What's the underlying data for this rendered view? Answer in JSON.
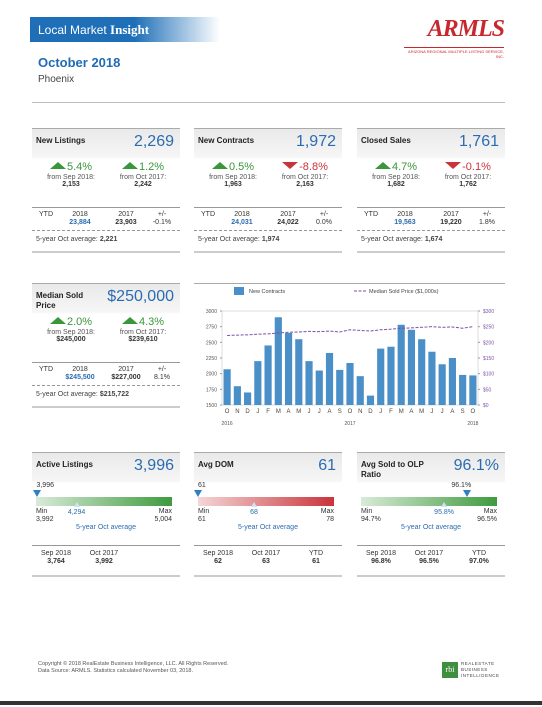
{
  "header": {
    "title_prefix": "Local Market",
    "title_bold": "Insight",
    "logo": "ARMLS",
    "logo_sub": "ARIZONA REGIONAL MULTIPLE LISTING SERVICE, INC.",
    "month": "October 2018",
    "area": "Phoenix"
  },
  "cards": [
    {
      "title": "New Listings",
      "value": "2,269",
      "changes": [
        {
          "pct": "5.4%",
          "label": "from Sep 2018:",
          "value": "2,153"
        },
        {
          "pct": "1.2%",
          "label": "from Oct 2017:",
          "value": "2,242"
        }
      ],
      "ytd": {
        "label": "YTD",
        "headers": [
          "2018",
          "2017",
          "+/-"
        ],
        "values": [
          "23,884",
          "23,903",
          "-0.1%"
        ]
      },
      "avg": {
        "label": "5-year Oct average:",
        "value": "2,221"
      }
    },
    {
      "title": "New Contracts",
      "value": "1,972",
      "changes": [
        {
          "pct": "0.5%",
          "label": "from Sep 2018:",
          "value": "1,963"
        },
        {
          "pct": "-8.8%",
          "label": "from Oct 2017:",
          "value": "2,163"
        }
      ],
      "ytd": {
        "label": "YTD",
        "headers": [
          "2018",
          "2017",
          "+/-"
        ],
        "values": [
          "24,031",
          "24,022",
          "0.0%"
        ]
      },
      "avg": {
        "label": "5-year Oct average:",
        "value": "1,974"
      }
    },
    {
      "title": "Closed Sales",
      "value": "1,761",
      "changes": [
        {
          "pct": "4.7%",
          "label": "from Sep 2018:",
          "value": "1,682"
        },
        {
          "pct": "-0.1%",
          "label": "from Oct 2017:",
          "value": "1,762"
        }
      ],
      "ytd": {
        "label": "YTD",
        "headers": [
          "2018",
          "2017",
          "+/-"
        ],
        "values": [
          "19,563",
          "19,220",
          "1.8%"
        ]
      },
      "avg": {
        "label": "5-year Oct average:",
        "value": "1,674"
      }
    },
    {
      "title": "Median Sold Price",
      "value": "$250,000",
      "changes": [
        {
          "pct": "2.0%",
          "label": "from Sep 2018:",
          "value": "$245,000"
        },
        {
          "pct": "4.3%",
          "label": "from Oct 2017:",
          "value": "$239,610"
        }
      ],
      "ytd": {
        "label": "YTD",
        "headers": [
          "2018",
          "2017",
          "+/-"
        ],
        "values": [
          "$245,500",
          "$227,000",
          "8.1%"
        ]
      },
      "avg": {
        "label": "5-year Oct average:",
        "value": "$215,722"
      }
    }
  ],
  "gauges": [
    {
      "title": "Active Listings",
      "value": "3,996",
      "color": "#3f9a3f",
      "gauge": {
        "current": "3,996",
        "min_label": "Min",
        "min": "3,992",
        "max_label": "Max",
        "max": "5,004",
        "avg": "4,294",
        "avg_label": "5-year Oct average"
      },
      "stats": [
        {
          "label": "Sep 2018",
          "value": "3,764"
        },
        {
          "label": "Oct 2017",
          "value": "3,992"
        }
      ]
    },
    {
      "title": "Avg DOM",
      "value": "61",
      "color": "#c9343a",
      "gauge": {
        "current": "61",
        "min_label": "Min",
        "min": "61",
        "max_label": "Max",
        "max": "78",
        "avg": "68",
        "avg_label": "5-year Oct average"
      },
      "stats": [
        {
          "label": "Sep 2018",
          "value": "62"
        },
        {
          "label": "Oct 2017",
          "value": "63"
        },
        {
          "label": "YTD",
          "value": "61"
        }
      ]
    },
    {
      "title": "Avg Sold to OLP Ratio",
      "value": "96.1%",
      "color": "#3f9a3f",
      "gauge": {
        "current": "96.1%",
        "min_label": "Min",
        "min": "94.7%",
        "max_label": "Max",
        "max": "96.5%",
        "avg": "95.8%",
        "avg_label": "5-year Oct average"
      },
      "stats": [
        {
          "label": "Sep 2018",
          "value": "96.8%"
        },
        {
          "label": "Oct 2017",
          "value": "96.5%"
        },
        {
          "label": "YTD",
          "value": "97.0%"
        }
      ]
    }
  ],
  "chart_data": {
    "type": "combo",
    "categories": [
      "O",
      "N",
      "D",
      "J",
      "F",
      "M",
      "A",
      "M",
      "J",
      "J",
      "A",
      "S",
      "O",
      "N",
      "D",
      "J",
      "F",
      "M",
      "A",
      "M",
      "J",
      "J",
      "A",
      "S",
      "O"
    ],
    "group_labels": [
      "2016",
      "2017",
      "2018"
    ],
    "series": [
      {
        "name": "New Contracts",
        "type": "bar",
        "color": "#4a8fc7",
        "values": [
          2070,
          1800,
          1700,
          2200,
          2450,
          2900,
          2650,
          2550,
          2200,
          2050,
          2330,
          2060,
          2170,
          1960,
          1650,
          2400,
          2430,
          2780,
          2700,
          2550,
          2350,
          2150,
          2250,
          1980,
          1972
        ]
      },
      {
        "name": "Median Sold Price ($1,000s)",
        "type": "line",
        "axis": "y2",
        "color": "#7e4fa8",
        "values": [
          222,
          223,
          224,
          226,
          227,
          230,
          232,
          233,
          235,
          234,
          236,
          233,
          240,
          238,
          236,
          240,
          242,
          245,
          246,
          248,
          250,
          248,
          249,
          245,
          250
        ]
      }
    ],
    "ylim": [
      1500,
      3000
    ],
    "yticks": [
      1500,
      1750,
      2000,
      2250,
      2500,
      2750,
      3000
    ],
    "y2lim": [
      0,
      300
    ],
    "y2ticks": [
      {
        "value": 0,
        "label": "$0"
      },
      {
        "value": 50,
        "label": "$50"
      },
      {
        "value": 100,
        "label": "$100"
      },
      {
        "value": 150,
        "label": "$150"
      },
      {
        "value": 200,
        "label": "$200"
      },
      {
        "value": 250,
        "label": "$250"
      },
      {
        "value": 300,
        "label": "$300"
      }
    ]
  },
  "footer": {
    "copyright": "Copyright © 2018 RealEstate Business Intelligence, LLC. All Rights Reserved.",
    "source": "Data Source: ARMLS. Statistics calculated November 03, 2018.",
    "logo_mark": "rbi",
    "logo_text": [
      "REALESTATE",
      "BUSINESS",
      "INTELLIGENCE"
    ]
  }
}
